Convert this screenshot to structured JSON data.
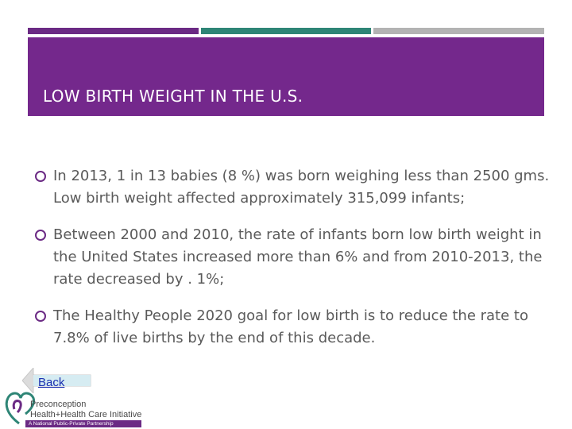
{
  "slide": {
    "title": "LOW BIRTH WEIGHT IN THE U.S."
  },
  "bullets": [
    {
      "text": "In 2013, 1 in 13 babies (8 %) was born weighing less than 2500 gms. Low birth weight affected approximately 315,099 infants;"
    },
    {
      "text": "Between 2000 and 2010, the rate of infants born low birth weight in the United States increased more than 6% and  from 2010-2013, the rate decreased by . 1%;"
    },
    {
      "text": "The Healthy People 2020 goal for low birth is to reduce the rate to 7.8% of live births by the end of this decade."
    }
  ],
  "nav": {
    "back_label": "Back"
  },
  "logo": {
    "line1": "Preconception",
    "line2": "Health+Health Care Initiative",
    "band": "A National Public-Private Partnership"
  },
  "colors": {
    "purple": "#74288c",
    "teal": "#2e8576",
    "gray": "#b3b3b3",
    "link": "#1a2fb0"
  }
}
